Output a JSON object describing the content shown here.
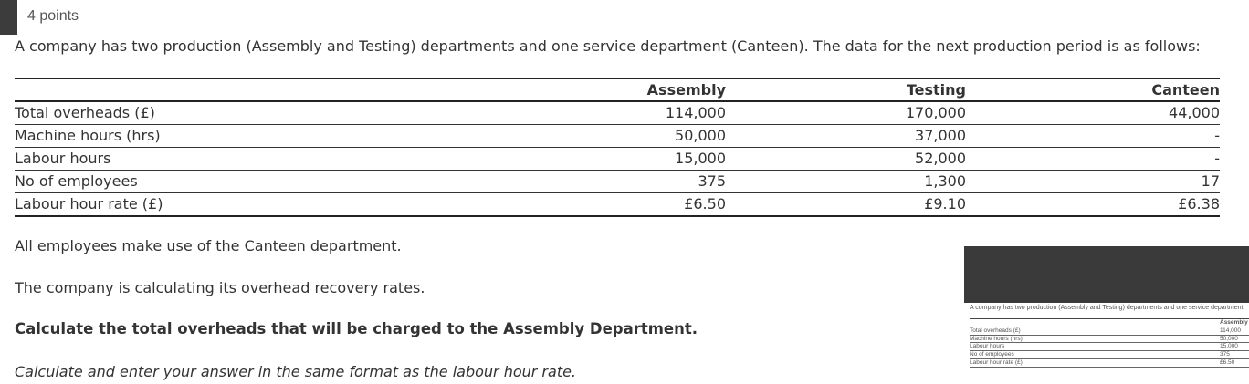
{
  "question": {
    "points": "4 points",
    "intro": "A company has two production (Assembly and Testing) departments and one service department (Canteen). The data for the next production period is as follows:",
    "table": {
      "headers": [
        "",
        "Assembly",
        "Testing",
        "Canteen"
      ],
      "rows": [
        [
          "Total overheads (£)",
          "114,000",
          "170,000",
          "44,000"
        ],
        [
          "Machine hours (hrs)",
          "50,000",
          "37,000",
          "-"
        ],
        [
          "Labour hours",
          "15,000",
          "52,000",
          "-"
        ],
        [
          "No of employees",
          "375",
          "1,300",
          "17"
        ],
        [
          "Labour hour rate (£)",
          "£6.50",
          "£9.10",
          "£6.38"
        ]
      ]
    },
    "para1": "All employees make use of the Canteen department.",
    "para2": "The company is calculating its overhead recovery rates.",
    "task": "Calculate the total overheads that will be charged to the Assembly Department.",
    "instruction": "Calculate and enter your answer in the same format as the labour hour rate."
  },
  "thumbnail": {
    "intro": "A company has two production (Assembly and Testing) departments and one service department",
    "header": "Assembly",
    "rows": [
      [
        "Total overheads (£)",
        "114,000"
      ],
      [
        "Machine hours (hrs)",
        "50,000"
      ],
      [
        "Labour hours",
        "15,000"
      ],
      [
        "No of employees",
        "375"
      ],
      [
        "Labour hour rate (£)",
        "£6.50"
      ]
    ]
  }
}
